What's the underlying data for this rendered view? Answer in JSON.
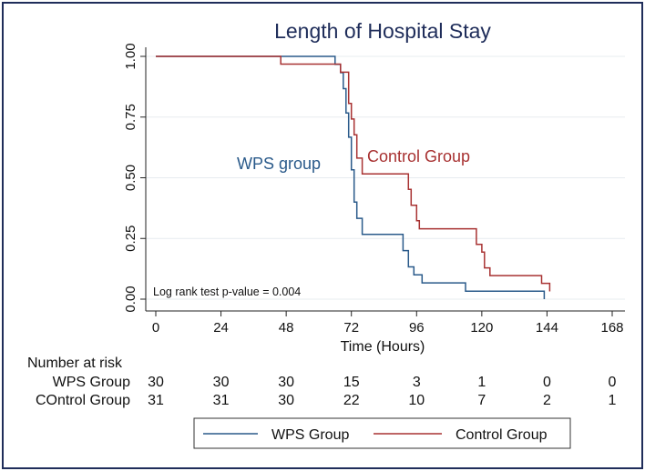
{
  "chart_data": {
    "type": "line",
    "subtype": "kaplan-meier",
    "title": "Length of Hospital Stay",
    "xlabel": "Time (Hours)",
    "ylabel": "",
    "xlim": [
      0,
      168
    ],
    "ylim": [
      0,
      1
    ],
    "x_ticks": [
      "0",
      "24",
      "48",
      "72",
      "96",
      "120",
      "144",
      "168"
    ],
    "y_ticks": [
      "0.00",
      "0.25",
      "0.50",
      "0.75",
      "1.00"
    ],
    "grid": true,
    "series": [
      {
        "name": "WPS Group",
        "label": "WPS group",
        "color": "#2a5a8a",
        "points": [
          [
            0,
            1
          ],
          [
            66,
            1
          ],
          [
            66,
            0.967
          ],
          [
            68,
            0.967
          ],
          [
            68,
            0.933
          ],
          [
            69,
            0.933
          ],
          [
            69,
            0.867
          ],
          [
            70,
            0.867
          ],
          [
            70,
            0.767
          ],
          [
            71,
            0.767
          ],
          [
            71,
            0.667
          ],
          [
            72,
            0.667
          ],
          [
            72,
            0.533
          ],
          [
            73,
            0.533
          ],
          [
            73,
            0.4
          ],
          [
            74,
            0.4
          ],
          [
            74,
            0.333
          ],
          [
            76,
            0.333
          ],
          [
            76,
            0.267
          ],
          [
            91,
            0.267
          ],
          [
            91,
            0.2
          ],
          [
            93,
            0.2
          ],
          [
            93,
            0.133
          ],
          [
            95,
            0.133
          ],
          [
            95,
            0.1
          ],
          [
            98,
            0.1
          ],
          [
            98,
            0.067
          ],
          [
            114,
            0.067
          ],
          [
            114,
            0.033
          ],
          [
            143,
            0.033
          ],
          [
            143,
            0
          ]
        ]
      },
      {
        "name": "Control Group",
        "label": "Control Group",
        "color": "#a83232",
        "points": [
          [
            0,
            1
          ],
          [
            46,
            1
          ],
          [
            46,
            0.968
          ],
          [
            68,
            0.968
          ],
          [
            68,
            0.935
          ],
          [
            71,
            0.935
          ],
          [
            71,
            0.806
          ],
          [
            72,
            0.806
          ],
          [
            72,
            0.742
          ],
          [
            73,
            0.742
          ],
          [
            73,
            0.677
          ],
          [
            74,
            0.677
          ],
          [
            74,
            0.581
          ],
          [
            76,
            0.581
          ],
          [
            76,
            0.516
          ],
          [
            93,
            0.516
          ],
          [
            93,
            0.452
          ],
          [
            94,
            0.452
          ],
          [
            94,
            0.387
          ],
          [
            96,
            0.387
          ],
          [
            96,
            0.323
          ],
          [
            97,
            0.323
          ],
          [
            97,
            0.29
          ],
          [
            118,
            0.29
          ],
          [
            118,
            0.226
          ],
          [
            120,
            0.226
          ],
          [
            120,
            0.194
          ],
          [
            121,
            0.194
          ],
          [
            121,
            0.129
          ],
          [
            123,
            0.129
          ],
          [
            123,
            0.097
          ],
          [
            142,
            0.097
          ],
          [
            142,
            0.065
          ],
          [
            145,
            0.065
          ],
          [
            145,
            0.032
          ]
        ]
      }
    ],
    "annotation": "Log rank test p-value = 0.004",
    "legend": {
      "position": "bottom-center",
      "entries": [
        "WPS Group",
        "Control Group"
      ]
    },
    "risk_table": {
      "title": "Number at risk",
      "rows": [
        {
          "label": "WPS Group",
          "values": [
            "30",
            "30",
            "30",
            "15",
            "3",
            "1",
            "0",
            "0"
          ]
        },
        {
          "label": "COntrol Group",
          "values": [
            "31",
            "31",
            "30",
            "22",
            "10",
            "7",
            "2",
            "1"
          ]
        }
      ]
    }
  }
}
